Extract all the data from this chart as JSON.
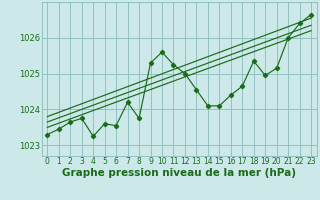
{
  "title": "",
  "xlabel": "Graphe pression niveau de la mer (hPa)",
  "ylabel": "",
  "bg_color": "#cce8e8",
  "grid_color": "#88bbbb",
  "line_color": "#1a6b1a",
  "xlim": [
    -0.5,
    23.5
  ],
  "ylim": [
    1022.7,
    1027.0
  ],
  "yticks": [
    1023,
    1024,
    1025,
    1026
  ],
  "xticks": [
    0,
    1,
    2,
    3,
    4,
    5,
    6,
    7,
    8,
    9,
    10,
    11,
    12,
    13,
    14,
    15,
    16,
    17,
    18,
    19,
    20,
    21,
    22,
    23
  ],
  "data_x": [
    0,
    1,
    2,
    3,
    4,
    5,
    6,
    7,
    8,
    9,
    10,
    11,
    12,
    13,
    14,
    15,
    16,
    17,
    18,
    19,
    20,
    21,
    22,
    23
  ],
  "data_y": [
    1023.3,
    1023.45,
    1023.65,
    1023.75,
    1023.25,
    1023.6,
    1023.55,
    1024.2,
    1023.75,
    1025.3,
    1025.6,
    1025.25,
    1025.0,
    1024.55,
    1024.1,
    1024.1,
    1024.4,
    1024.65,
    1025.35,
    1024.95,
    1025.15,
    1026.0,
    1026.4,
    1026.65
  ],
  "trend1_x": [
    0,
    23
  ],
  "trend1_y": [
    1023.5,
    1026.2
  ],
  "trend2_x": [
    0,
    23
  ],
  "trend2_y": [
    1023.65,
    1026.35
  ],
  "trend3_x": [
    0,
    23
  ],
  "trend3_y": [
    1023.8,
    1026.55
  ],
  "xlabel_fontsize": 7.5,
  "tick_fontsize": 5.5
}
